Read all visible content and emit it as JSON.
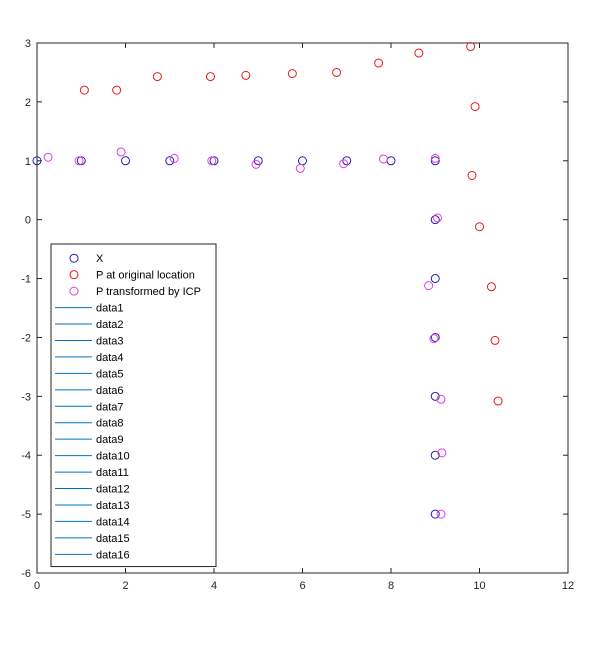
{
  "chart_data": {
    "type": "scatter",
    "title": "",
    "xlabel": "",
    "ylabel": "",
    "xlim": [
      0,
      12
    ],
    "ylim": [
      -6,
      3
    ],
    "xticks": [
      0,
      2,
      4,
      6,
      8,
      10,
      12
    ],
    "yticks": [
      -6,
      -5,
      -4,
      -3,
      -2,
      -1,
      0,
      1,
      2,
      3
    ],
    "grid": false,
    "legend_position": "bottom-left",
    "series": [
      {
        "name": "X",
        "color": "#1f1fb4",
        "marker": "circle",
        "points": [
          [
            0,
            1
          ],
          [
            1,
            1
          ],
          [
            2,
            1
          ],
          [
            3,
            1
          ],
          [
            4,
            1
          ],
          [
            5,
            1
          ],
          [
            6,
            1
          ],
          [
            7,
            1
          ],
          [
            8,
            1
          ],
          [
            9,
            1
          ],
          [
            9,
            0
          ],
          [
            9,
            -1
          ],
          [
            9,
            -2
          ],
          [
            9,
            -3
          ],
          [
            9,
            -4
          ],
          [
            9,
            -5
          ]
        ]
      },
      {
        "name": "P at original location",
        "color": "#e31a1c",
        "marker": "circle",
        "points": [
          [
            1.07,
            2.2
          ],
          [
            1.8,
            2.2
          ],
          [
            2.72,
            2.43
          ],
          [
            3.92,
            2.43
          ],
          [
            4.72,
            2.45
          ],
          [
            5.77,
            2.48
          ],
          [
            6.77,
            2.5
          ],
          [
            7.72,
            2.66
          ],
          [
            8.63,
            2.83
          ],
          [
            9.8,
            2.94
          ],
          [
            9.9,
            1.92
          ],
          [
            9.83,
            0.75
          ],
          [
            10,
            -0.12
          ],
          [
            10.27,
            -1.14
          ],
          [
            10.35,
            -2.05
          ],
          [
            10.42,
            -3.08
          ]
        ]
      },
      {
        "name": "P transformed by ICP",
        "color": "#e838e8",
        "marker": "circle",
        "points": [
          [
            0.25,
            1.06
          ],
          [
            0.95,
            1.0
          ],
          [
            1.9,
            1.15
          ],
          [
            3.1,
            1.04
          ],
          [
            3.95,
            1.0
          ],
          [
            4.95,
            0.94
          ],
          [
            5.95,
            0.87
          ],
          [
            6.93,
            0.95
          ],
          [
            7.83,
            1.03
          ],
          [
            9.0,
            1.04
          ],
          [
            9.05,
            0.03
          ],
          [
            8.85,
            -1.12
          ],
          [
            8.97,
            -2.02
          ],
          [
            9.13,
            -3.05
          ],
          [
            9.15,
            -3.96
          ],
          [
            9.13,
            -5.0
          ]
        ]
      }
    ],
    "line_series": [
      {
        "name": "data1",
        "color": "#0072bd"
      },
      {
        "name": "data2",
        "color": "#0072bd"
      },
      {
        "name": "data3",
        "color": "#0072bd"
      },
      {
        "name": "data4",
        "color": "#0072bd"
      },
      {
        "name": "data5",
        "color": "#0072bd"
      },
      {
        "name": "data6",
        "color": "#0072bd"
      },
      {
        "name": "data7",
        "color": "#0072bd"
      },
      {
        "name": "data8",
        "color": "#0072bd"
      },
      {
        "name": "data9",
        "color": "#0072bd"
      },
      {
        "name": "data10",
        "color": "#0072bd"
      },
      {
        "name": "data11",
        "color": "#0072bd"
      },
      {
        "name": "data12",
        "color": "#0072bd"
      },
      {
        "name": "data13",
        "color": "#0072bd"
      },
      {
        "name": "data14",
        "color": "#0072bd"
      },
      {
        "name": "data15",
        "color": "#0072bd"
      },
      {
        "name": "data16",
        "color": "#0072bd"
      }
    ]
  }
}
